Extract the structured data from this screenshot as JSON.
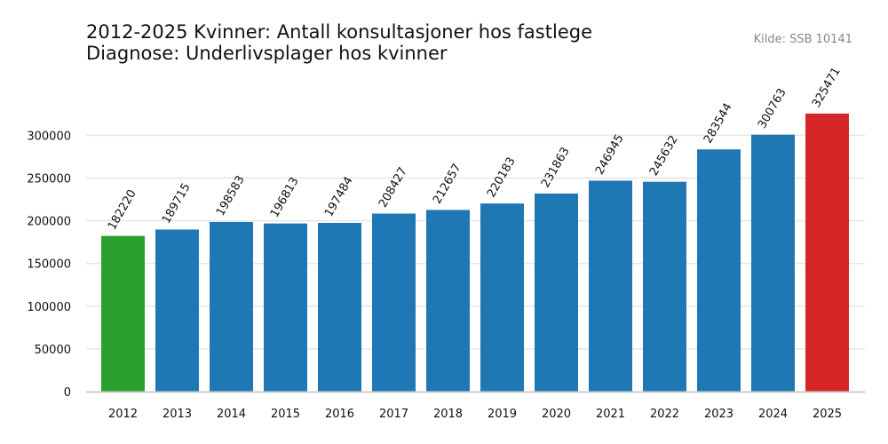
{
  "title": {
    "line1": "2012-2025 Kvinner: Antall konsultasjoner hos fastlege",
    "line2": "Diagnose: Underlivsplager hos kvinner"
  },
  "source": "Kilde: SSB 10141",
  "chart_data": {
    "type": "bar",
    "title": "2012-2025 Kvinner: Antall konsultasjoner hos fastlege\nDiagnose: Underlivsplager hos kvinner",
    "xlabel": "",
    "ylabel": "",
    "categories": [
      "2012",
      "2013",
      "2014",
      "2015",
      "2016",
      "2017",
      "2018",
      "2019",
      "2020",
      "2021",
      "2022",
      "2023",
      "2024",
      "2025"
    ],
    "values": [
      182220,
      189715,
      198583,
      196813,
      197484,
      208427,
      212657,
      220183,
      231863,
      246945,
      245632,
      283544,
      300763,
      325471
    ],
    "data_labels": [
      "182220",
      "189715",
      "198583",
      "196813",
      "197484",
      "208427",
      "212657",
      "220183",
      "231863",
      "246945",
      "245632",
      "283544",
      "300763",
      "325471"
    ],
    "ylim": [
      0,
      350000
    ],
    "yticks": [
      0,
      50000,
      100000,
      150000,
      200000,
      250000,
      300000
    ],
    "ytick_labels": [
      "0",
      "50000",
      "100000",
      "150000",
      "200000",
      "250000",
      "300000"
    ],
    "grid": "horizontal",
    "legend": "none",
    "colors": {
      "first": "#2ca02c",
      "default": "#1f77b4",
      "last": "#d62728",
      "grid": "#e6e6e6",
      "axis": "#cccccc"
    }
  }
}
